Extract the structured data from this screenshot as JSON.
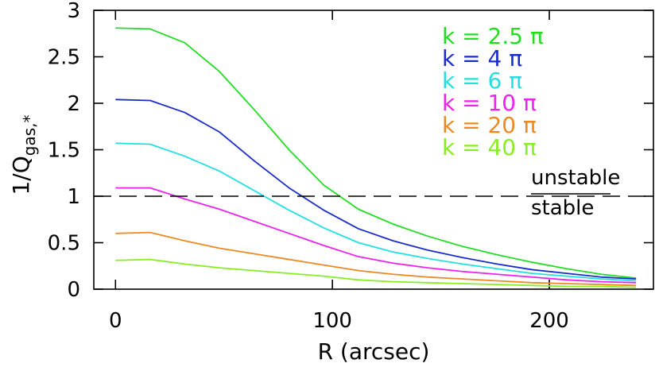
{
  "chart_data": {
    "type": "line",
    "xlabel": "R (arcsec)",
    "ylabel": {
      "main": "1/Q",
      "sub": "gas,*"
    },
    "xlim": [
      -10,
      248
    ],
    "ylim": [
      0,
      3
    ],
    "xticks": [
      0,
      100,
      200
    ],
    "xtick_labels": [
      "0",
      "100",
      "200"
    ],
    "yticks": [
      0,
      0.5,
      1,
      1.5,
      2,
      2.5,
      3
    ],
    "ytick_labels": [
      "0",
      "0.5",
      "1",
      "1.5",
      "2",
      "2.5",
      "3"
    ],
    "grid": false,
    "legend_position": "top-right",
    "x": [
      0,
      16,
      32,
      48,
      64,
      80,
      96,
      112,
      128,
      144,
      160,
      176,
      192,
      208,
      224,
      240
    ],
    "series": [
      {
        "name": "k = 2.5 π",
        "color": "#22dd22",
        "values": [
          2.81,
          2.8,
          2.65,
          2.34,
          1.93,
          1.5,
          1.12,
          0.86,
          0.7,
          0.57,
          0.46,
          0.37,
          0.29,
          0.22,
          0.16,
          0.12
        ]
      },
      {
        "name": "k = 4 π",
        "color": "#1a2ccc",
        "values": [
          2.04,
          2.03,
          1.9,
          1.69,
          1.38,
          1.09,
          0.85,
          0.65,
          0.52,
          0.42,
          0.34,
          0.27,
          0.21,
          0.17,
          0.13,
          0.11
        ]
      },
      {
        "name": "k = 6 π",
        "color": "#22e0e0",
        "values": [
          1.57,
          1.56,
          1.43,
          1.27,
          1.06,
          0.85,
          0.66,
          0.5,
          0.4,
          0.33,
          0.27,
          0.22,
          0.17,
          0.14,
          0.11,
          0.09
        ]
      },
      {
        "name": "k = 10 π",
        "color": "#ee22ee",
        "values": [
          1.09,
          1.09,
          0.97,
          0.86,
          0.73,
          0.6,
          0.47,
          0.35,
          0.28,
          0.23,
          0.19,
          0.16,
          0.13,
          0.1,
          0.08,
          0.07
        ]
      },
      {
        "name": "k = 20 π",
        "color": "#ee8822",
        "values": [
          0.6,
          0.61,
          0.52,
          0.44,
          0.38,
          0.32,
          0.26,
          0.2,
          0.16,
          0.13,
          0.11,
          0.09,
          0.07,
          0.06,
          0.05,
          0.04
        ]
      },
      {
        "name": "k = 40 π",
        "color": "#88ee22",
        "values": [
          0.31,
          0.32,
          0.27,
          0.23,
          0.2,
          0.17,
          0.14,
          0.1,
          0.08,
          0.07,
          0.06,
          0.05,
          0.04,
          0.03,
          0.03,
          0.02
        ]
      }
    ],
    "reference_line": {
      "y": 1,
      "style": "dashed",
      "color": "#000000"
    },
    "annotations": {
      "above": "unstable",
      "below": "stable"
    }
  }
}
